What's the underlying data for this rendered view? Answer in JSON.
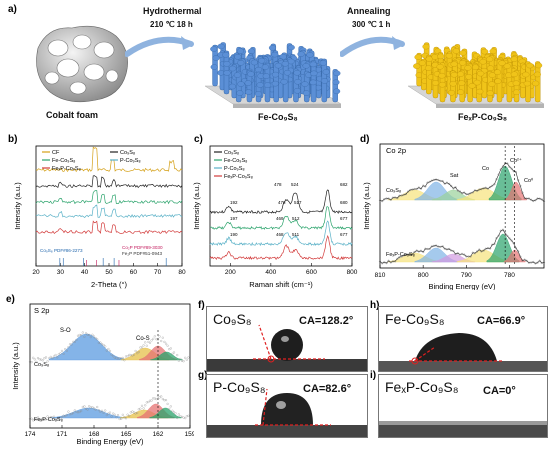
{
  "panel_a": {
    "label": "a)",
    "step1_title": "Hydrothermal",
    "step1_cond": "210 ℃ 18 h",
    "step2_title": "Annealing",
    "step2_cond": "300 ℃ 1 h",
    "material1": "Cobalt foam",
    "material2": "Fe-Co₉S₈",
    "material3": "FeₓP-Co₉S₈",
    "colors": {
      "foam": "#9a9a9a",
      "blue_rods": "#5b8fd6",
      "yellow_rods": "#f0c419",
      "substrate": "#d0d0d0"
    }
  },
  "panel_b": {
    "label": "b)",
    "ylabel": "Intensity (a.u.)",
    "xlabel": "2-Theta (°)",
    "legend": [
      "CF",
      "Co₉S₈",
      "Fe-Co₉S₈",
      "P-Co₉S₈",
      "FeₓP-Co₉S₈"
    ],
    "ref1": "Co₉S₈ PDF#86-2273",
    "ref2": "Co₂P PDF#89-3030",
    "ref3": "Fe₂P PDF#51-0943",
    "xticks": [
      "20",
      "30",
      "40",
      "50",
      "60",
      "70",
      "80"
    ],
    "colors": [
      "#d4a017",
      "#222222",
      "#2aa36b",
      "#5ab1c7",
      "#d23a3a"
    ]
  },
  "panel_c": {
    "label": "c)",
    "ylabel": "Intensity (a.u.)",
    "xlabel": "Raman shift (cm⁻¹)",
    "legend": [
      "Co₉S₈",
      "Fe-Co₉S₈",
      "P-Co₉S₈",
      "FeₓP-Co₉S₈"
    ],
    "xticks": [
      "200",
      "400",
      "600",
      "800"
    ],
    "peak_labels": [
      "478",
      "524",
      "682",
      "192",
      "476",
      "517",
      "680",
      "197",
      "469",
      "512",
      "677",
      "190",
      "468",
      "511",
      "677"
    ]
  },
  "panel_d": {
    "label": "d)",
    "title": "Co 2p",
    "ylabel": "Intensity (a.u.)",
    "xlabel": "Binding Energy (eV)",
    "annotations": [
      "Sat",
      "Co",
      "Co²⁺",
      "Co⁰"
    ],
    "sample1": "Co₉S₈",
    "sample2": "FeₓP-Co₉S₈",
    "xticks": [
      "810",
      "800",
      "790",
      "780"
    ]
  },
  "panel_e": {
    "label": "e)",
    "title": "S 2p",
    "ylabel": "Intensity (a.u.)",
    "xlabel": "Binding Energy (eV)",
    "annotations": [
      "S-O",
      "Co-S"
    ],
    "sample1": "Co₉S₈",
    "sample2": "FeₓP-Co₉S₈",
    "xticks": [
      "174",
      "171",
      "168",
      "165",
      "162",
      "159"
    ]
  },
  "contact_angles": [
    {
      "label": "f)",
      "title": "Co₉S₈",
      "ca": "CA=128.2°"
    },
    {
      "label": "g)",
      "title": "P-Co₉S₈",
      "ca": "CA=82.6°"
    },
    {
      "label": "h)",
      "title": "Fe-Co₉S₈",
      "ca": "CA=66.9°"
    },
    {
      "label": "i)",
      "title": "FeₓP-Co₉S₈",
      "ca": "CA=0°"
    }
  ]
}
